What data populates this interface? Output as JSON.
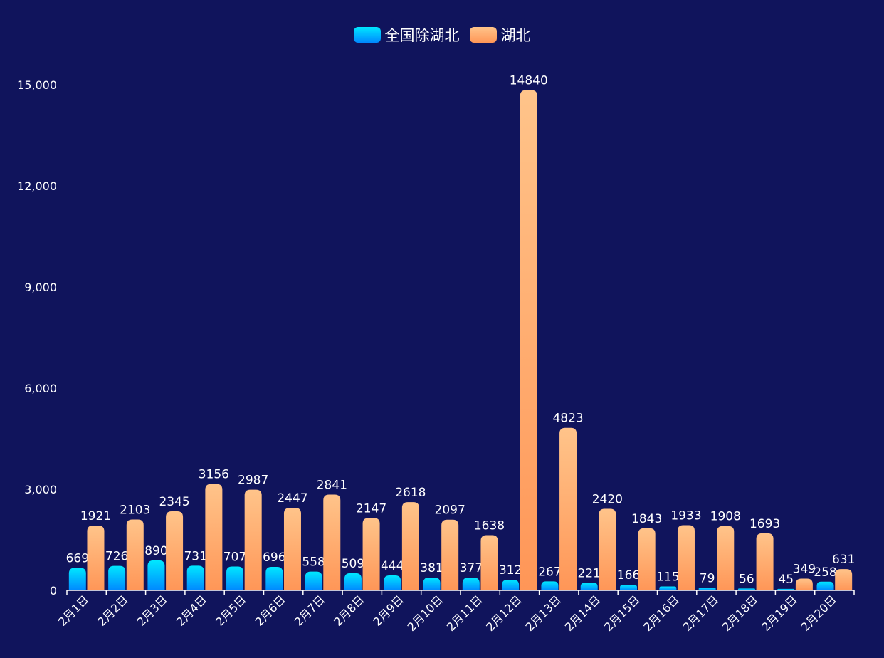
{
  "chart_data": {
    "type": "bar",
    "title": "",
    "xlabel": "",
    "ylabel": "",
    "ylim": [
      0,
      15000
    ],
    "yticks": [
      "0",
      "3,000",
      "6,000",
      "9,000",
      "12,000",
      "15,000"
    ],
    "ytick_values": [
      0,
      3000,
      6000,
      9000,
      12000,
      15000
    ],
    "grid": false,
    "legend_position": "top-center",
    "categories": [
      "2月1日",
      "2月2日",
      "2月3日",
      "2月4日",
      "2月5日",
      "2月6日",
      "2月7日",
      "2月8日",
      "2月9日",
      "2月10日",
      "2月11日",
      "2月12日",
      "2月13日",
      "2月14日",
      "2月15日",
      "2月16日",
      "2月17日",
      "2月18日",
      "2月19日",
      "2月20日"
    ],
    "series": [
      {
        "name": "全国除湖北",
        "color_top": "#00e8ff",
        "color_bottom": "#0088ff",
        "values": [
          669,
          726,
          890,
          731,
          707,
          696,
          558,
          509,
          444,
          381,
          377,
          312,
          267,
          221,
          166,
          115,
          79,
          56,
          45,
          258
        ]
      },
      {
        "name": "湖北",
        "color_top": "#ffc48a",
        "color_bottom": "#ff9657",
        "values": [
          1921,
          2103,
          2345,
          3156,
          2987,
          2447,
          2841,
          2147,
          2618,
          2097,
          1638,
          14840,
          4823,
          2420,
          1843,
          1933,
          1908,
          1693,
          349,
          631
        ]
      }
    ]
  },
  "background": "#10145c"
}
